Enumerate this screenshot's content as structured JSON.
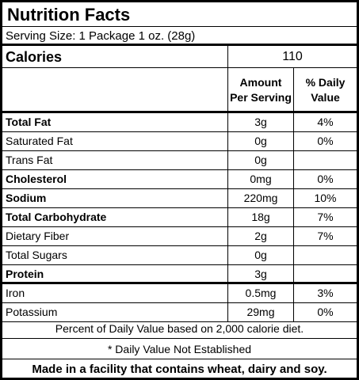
{
  "title": "Nutrition Facts",
  "serving_size": "Serving Size: 1 Package 1 oz. (28g)",
  "calories": {
    "label": "Calories",
    "value": "110"
  },
  "headers": {
    "amount_line1": "Amount",
    "amount_line2": "Per Serving",
    "dv_line1": "% Daily",
    "dv_line2": "Value"
  },
  "rows": [
    {
      "name": "Total Fat",
      "amount": "3g",
      "dv": "4%"
    },
    {
      "name": "Saturated Fat",
      "amount": "0g",
      "dv": "0%"
    },
    {
      "name": "Trans Fat",
      "amount": "0g",
      "dv": ""
    },
    {
      "name": "Cholesterol",
      "amount": "0mg",
      "dv": "0%"
    },
    {
      "name": "Sodium",
      "amount": "220mg",
      "dv": "10%"
    },
    {
      "name": "Total Carbohydrate",
      "amount": "18g",
      "dv": "7%"
    },
    {
      "name": "Dietary Fiber",
      "amount": "2g",
      "dv": "7%"
    },
    {
      "name": "Total Sugars",
      "amount": "0g",
      "dv": ""
    },
    {
      "name": "Protein",
      "amount": "3g",
      "dv": ""
    },
    {
      "name": "Iron",
      "amount": "0.5mg",
      "dv": "3%"
    },
    {
      "name": "Potassium",
      "amount": "29mg",
      "dv": "0%"
    }
  ],
  "footnotes": {
    "daily_value": "Percent of Daily Value based on 2,000 calorie diet.",
    "not_established": "* Daily Value Not Established"
  },
  "allergen": "Made in a facility that contains wheat, dairy and soy."
}
